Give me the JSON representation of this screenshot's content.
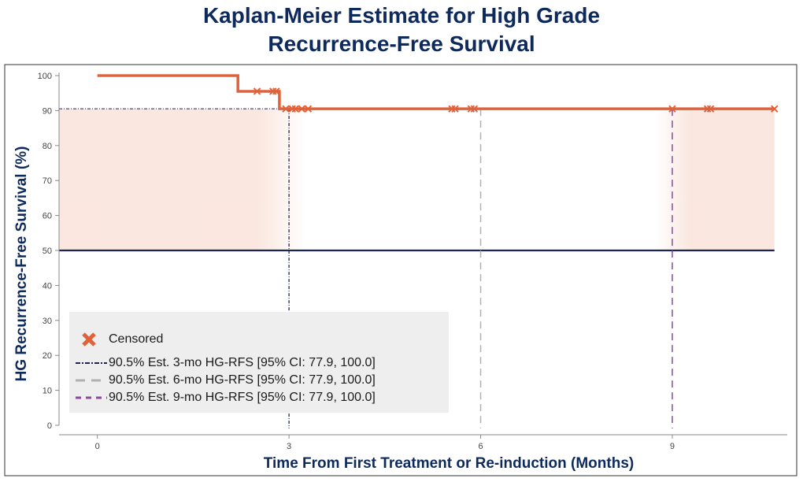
{
  "chart_data": {
    "type": "line",
    "title_lines": [
      "Kaplan-Meier Estimate for High Grade",
      "Recurrence-Free Survival"
    ],
    "xlabel": "Time From First Treatment or Re-induction (Months)",
    "ylabel": "HG Recurrence-Free Survival (%)",
    "xlim": [
      -0.6,
      10.8
    ],
    "ylim": [
      0,
      100
    ],
    "x_ticks": [
      0,
      3,
      6,
      9
    ],
    "y_ticks": [
      0,
      10,
      20,
      30,
      40,
      50,
      60,
      70,
      80,
      90,
      100
    ],
    "km_curve": {
      "name": "HG-RFS",
      "color": "#e0623a",
      "steps": [
        {
          "x": 0,
          "y": 100
        },
        {
          "x": 2.2,
          "y": 95.5
        },
        {
          "x": 2.85,
          "y": 90.5
        }
      ],
      "end_x": 10.6
    },
    "censored": {
      "x": [
        2.5,
        2.75,
        2.8,
        2.95,
        3.05,
        3.1,
        3.2,
        3.3,
        5.55,
        5.6,
        5.85,
        5.9,
        9.0,
        9.55,
        9.6,
        10.6
      ],
      "y": [
        95.5,
        95.5,
        95.5,
        90.5,
        90.5,
        90.5,
        90.5,
        90.5,
        90.5,
        90.5,
        90.5,
        90.5,
        90.5,
        90.5,
        90.5,
        90.5
      ]
    },
    "median_line": {
      "y": 50,
      "color": "#1b2452"
    },
    "estimates": [
      {
        "x": 3,
        "y": 90.5,
        "color": "#1b2452",
        "style": "dashdot"
      },
      {
        "x": 6,
        "y": 90.5,
        "color": "#b0b0b0",
        "style": "dashed"
      },
      {
        "x": 9,
        "y": 90.5,
        "color": "#8a4c9a",
        "style": "dashed"
      }
    ],
    "ci_band": {
      "lower": 50,
      "upper": 90.5,
      "color": "#f3c9b8"
    },
    "legend": {
      "placement": "bottom-left",
      "items": [
        {
          "label": "Censored",
          "marker": "x",
          "color": "#e0623a"
        },
        {
          "label": "90.5% Est. 3-mo HG-RFS [95% CI: 77.9, 100.0]",
          "marker": "dashdot",
          "color": "#1b2452"
        },
        {
          "label": "90.5% Est. 6-mo HG-RFS [95% CI: 77.9, 100.0]",
          "marker": "dashed",
          "color": "#b0b0b0"
        },
        {
          "label": "90.5% Est. 9-mo HG-RFS [95% CI: 77.9, 100.0]",
          "marker": "dashed",
          "color": "#8a4c9a"
        }
      ]
    }
  }
}
